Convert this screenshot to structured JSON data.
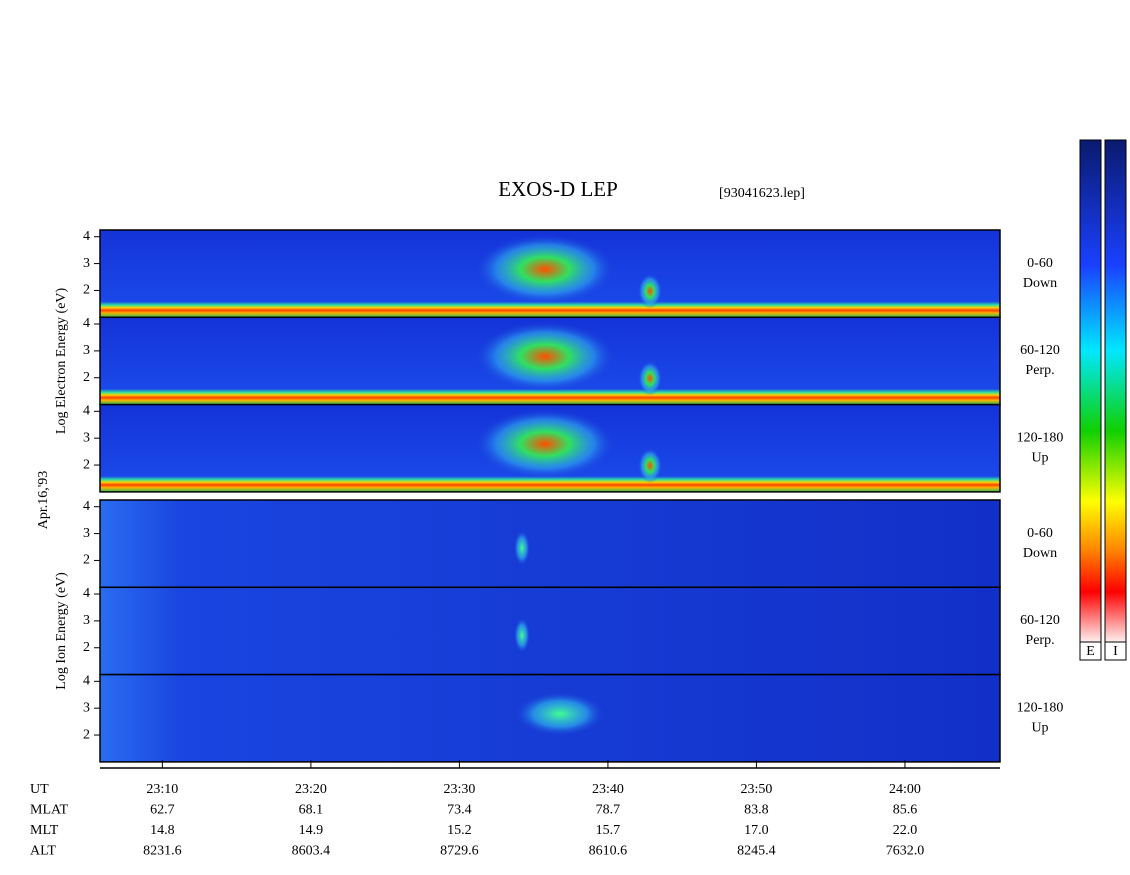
{
  "title": "EXOS-D LEP",
  "file": "[93041623.lep]",
  "date": "Apr.16,'93",
  "groups": [
    {
      "label": "Log Electron Energy (eV)",
      "panels": [
        [
          "0-60",
          "Down"
        ],
        [
          "60-120",
          "Perp."
        ],
        [
          "120-180",
          "Up"
        ]
      ]
    },
    {
      "label": "Log Ion Energy (eV)",
      "panels": [
        [
          "0-60",
          "Down"
        ],
        [
          "60-120",
          "Perp."
        ],
        [
          "120-180",
          "Up"
        ]
      ]
    }
  ],
  "ylim": [
    1,
    4.25
  ],
  "yticks": [
    2,
    3,
    4
  ],
  "xlim": [
    1385.8,
    1446.4
  ],
  "xticks": [
    {
      "value": 1390,
      "label": "23:10"
    },
    {
      "value": 1400,
      "label": "23:20"
    },
    {
      "value": 1410,
      "label": "23:30"
    },
    {
      "value": 1420,
      "label": "23:40"
    },
    {
      "value": 1430,
      "label": "23:50"
    },
    {
      "value": 1440,
      "label": "24:00"
    }
  ],
  "rows": [
    {
      "name": "UT"
    },
    {
      "name": "MLAT",
      "values": [
        "62.7",
        "68.1",
        "73.4",
        "78.7",
        "83.8",
        "85.6"
      ]
    },
    {
      "name": "MLT",
      "values": [
        "14.8",
        "14.9",
        "15.2",
        "15.7",
        "17.0",
        "22.0"
      ]
    },
    {
      "name": "ALT",
      "values": [
        "8231.6",
        "8603.4",
        "8729.6",
        "8610.6",
        "8245.4",
        "7632.0"
      ]
    }
  ],
  "colorbars": [
    "E",
    "I"
  ]
}
